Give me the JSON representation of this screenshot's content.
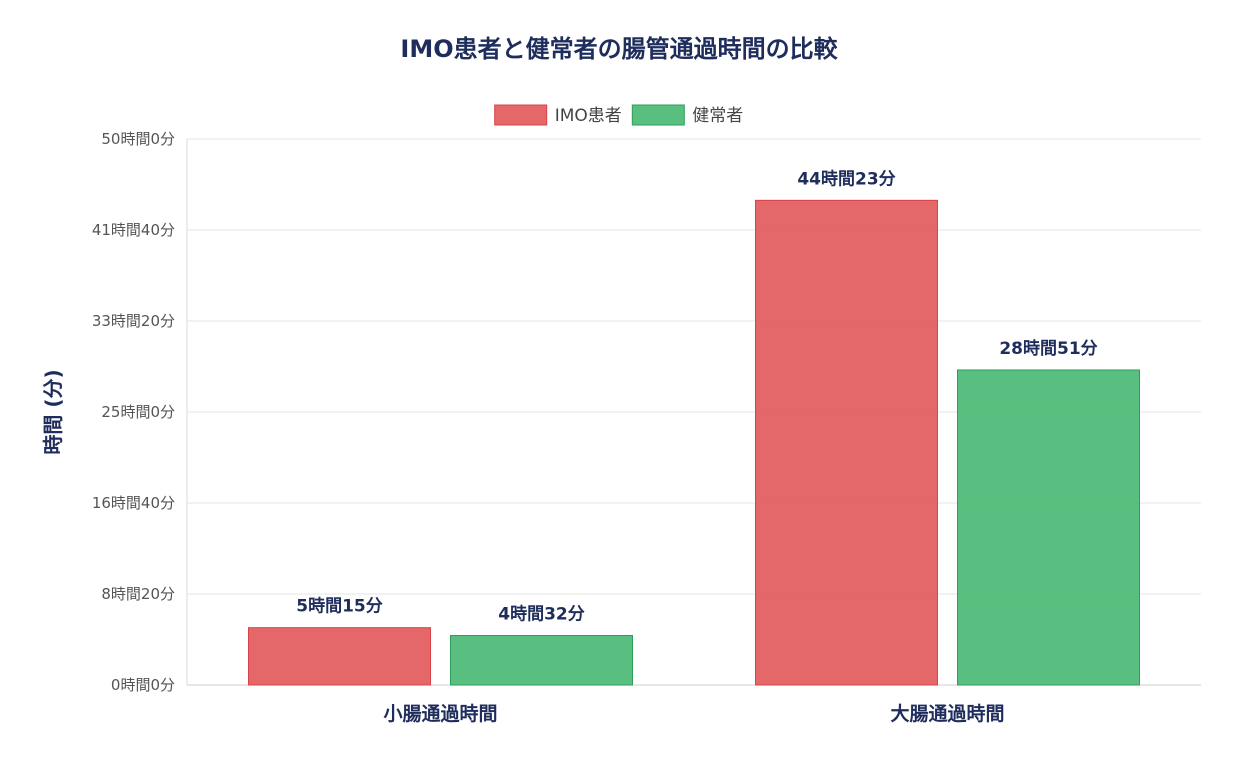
{
  "chart_data": {
    "type": "bar",
    "title": "IMO患者と健常者の腸管通過時間の比較",
    "ylabel": "時間 (分)",
    "xlabel": "",
    "categories": [
      "小腸通過時間",
      "大腸通過時間"
    ],
    "series": [
      {
        "name": "IMO患者",
        "values": [
          315,
          2663
        ],
        "color": "#e15759",
        "labels": [
          "5時間15分",
          "44時間23分"
        ]
      },
      {
        "name": "健常者",
        "values": [
          272,
          1731
        ],
        "color": "#3cb46a",
        "labels": [
          "4時間32分",
          "28時間51分"
        ]
      }
    ],
    "ylim": [
      0,
      3000
    ],
    "yticks": [
      0,
      500,
      1000,
      1500,
      2000,
      2500,
      3000
    ],
    "ytick_labels": [
      "0時間0分",
      "8時間20分",
      "16時間40分",
      "25時間0分",
      "33時間20分",
      "41時間40分",
      "50時間0分"
    ],
    "legend_position": "top",
    "grid": true
  },
  "colors": {
    "title": "#1f2d5c",
    "grid": "#e6e6e6",
    "tick": "#555555",
    "imo_fill": "rgba(225,87,89,0.9)",
    "imo_stroke": "#d94345",
    "healthy_fill": "rgba(60,180,106,0.85)",
    "healthy_stroke": "#2e9f59"
  }
}
